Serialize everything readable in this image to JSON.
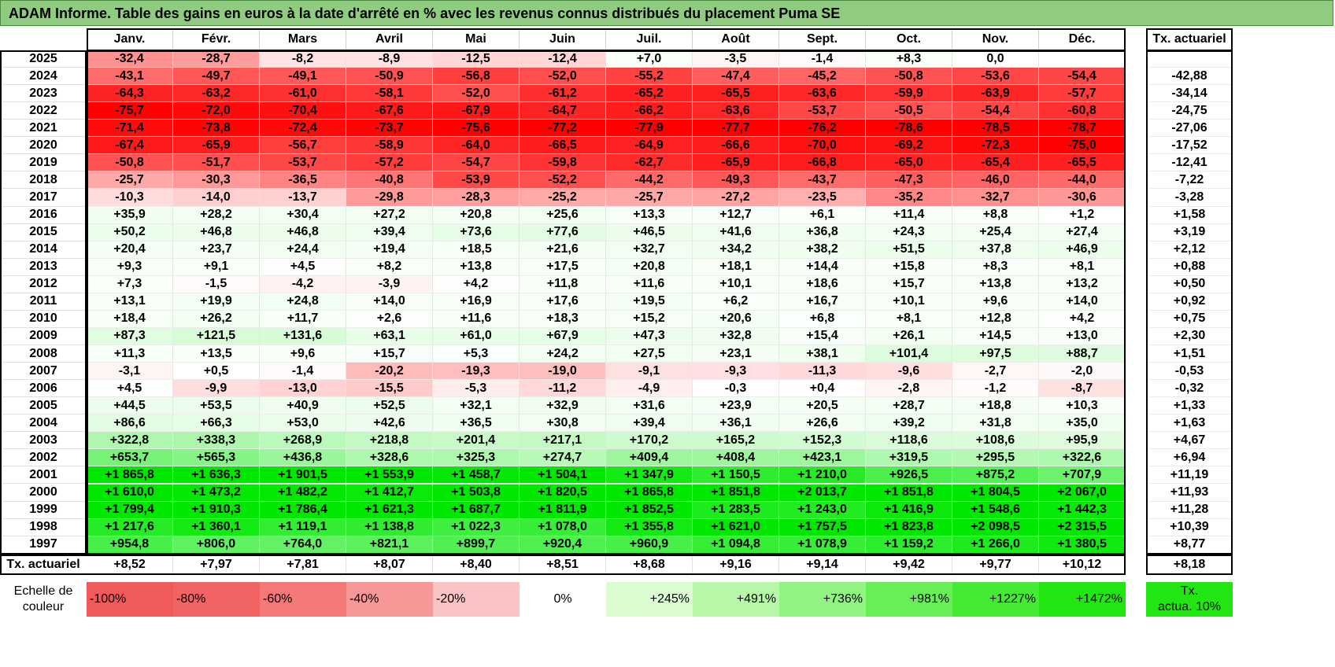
{
  "title": "ADAM Informe. Table des gains en euros à la date d'arrêté en % avec les revenus connus distribués du placement Puma SE",
  "months": [
    "Janv.",
    "Févr.",
    "Mars",
    "Avril",
    "Mai",
    "Juin",
    "Juil.",
    "Août",
    "Sept.",
    "Oct.",
    "Nov.",
    "Déc."
  ],
  "actuarial_header": "Tx. actuariel",
  "rows": [
    {
      "year": "2025",
      "values": [
        "-32,4",
        "-28,7",
        "-8,2",
        "-8,9",
        "-12,5",
        "-12,4",
        "+7,0",
        "-3,5",
        "-1,4",
        "+8,3",
        "0,0",
        ""
      ],
      "rate": ""
    },
    {
      "year": "2024",
      "values": [
        "-43,1",
        "-49,7",
        "-49,1",
        "-50,9",
        "-56,8",
        "-52,0",
        "-55,2",
        "-47,4",
        "-45,2",
        "-50,8",
        "-53,6",
        "-54,4"
      ],
      "rate": "-42,88"
    },
    {
      "year": "2023",
      "values": [
        "-64,3",
        "-63,2",
        "-61,0",
        "-58,1",
        "-52,0",
        "-61,2",
        "-65,2",
        "-65,5",
        "-63,6",
        "-59,9",
        "-63,9",
        "-57,7"
      ],
      "rate": "-34,14"
    },
    {
      "year": "2022",
      "values": [
        "-75,7",
        "-72,0",
        "-70,4",
        "-67,6",
        "-67,9",
        "-64,7",
        "-66,2",
        "-63,6",
        "-53,7",
        "-50,5",
        "-54,4",
        "-60,8"
      ],
      "rate": "-24,75"
    },
    {
      "year": "2021",
      "values": [
        "-71,4",
        "-73,8",
        "-72,4",
        "-73,7",
        "-75,6",
        "-77,2",
        "-77,9",
        "-77,7",
        "-76,2",
        "-78,6",
        "-78,5",
        "-78,7"
      ],
      "rate": "-27,06"
    },
    {
      "year": "2020",
      "values": [
        "-67,4",
        "-65,9",
        "-56,7",
        "-58,9",
        "-64,0",
        "-66,5",
        "-64,9",
        "-66,6",
        "-70,0",
        "-69,2",
        "-72,3",
        "-75,0"
      ],
      "rate": "-17,52"
    },
    {
      "year": "2019",
      "values": [
        "-50,8",
        "-51,7",
        "-53,7",
        "-57,2",
        "-54,7",
        "-59,8",
        "-62,7",
        "-65,9",
        "-66,8",
        "-65,0",
        "-65,4",
        "-65,5"
      ],
      "rate": "-12,41"
    },
    {
      "year": "2018",
      "values": [
        "-25,7",
        "-30,3",
        "-36,5",
        "-40,8",
        "-53,9",
        "-52,2",
        "-44,2",
        "-49,3",
        "-43,7",
        "-47,3",
        "-46,0",
        "-44,0"
      ],
      "rate": "-7,22"
    },
    {
      "year": "2017",
      "values": [
        "-10,3",
        "-14,0",
        "-13,7",
        "-29,8",
        "-28,3",
        "-25,2",
        "-25,7",
        "-27,2",
        "-23,5",
        "-35,2",
        "-32,7",
        "-30,6"
      ],
      "rate": "-3,28"
    },
    {
      "year": "2016",
      "values": [
        "+35,9",
        "+28,2",
        "+30,4",
        "+27,2",
        "+20,8",
        "+25,6",
        "+13,3",
        "+12,7",
        "+6,1",
        "+11,4",
        "+8,8",
        "+1,2"
      ],
      "rate": "+1,58"
    },
    {
      "year": "2015",
      "values": [
        "+50,2",
        "+46,8",
        "+46,8",
        "+39,4",
        "+73,6",
        "+77,6",
        "+46,5",
        "+41,6",
        "+36,8",
        "+24,3",
        "+25,4",
        "+27,4"
      ],
      "rate": "+3,19"
    },
    {
      "year": "2014",
      "values": [
        "+20,4",
        "+23,7",
        "+24,4",
        "+19,4",
        "+18,5",
        "+21,6",
        "+32,7",
        "+34,2",
        "+38,2",
        "+51,5",
        "+37,8",
        "+46,9"
      ],
      "rate": "+2,12"
    },
    {
      "year": "2013",
      "values": [
        "+9,3",
        "+9,1",
        "+4,5",
        "+8,2",
        "+13,8",
        "+17,5",
        "+20,8",
        "+18,1",
        "+14,4",
        "+15,8",
        "+8,3",
        "+8,1"
      ],
      "rate": "+0,88"
    },
    {
      "year": "2012",
      "values": [
        "+7,3",
        "-1,5",
        "-4,2",
        "-3,9",
        "+4,2",
        "+11,8",
        "+11,6",
        "+10,1",
        "+18,6",
        "+15,7",
        "+13,8",
        "+13,2"
      ],
      "rate": "+0,50"
    },
    {
      "year": "2011",
      "values": [
        "+13,1",
        "+19,9",
        "+24,8",
        "+14,0",
        "+16,9",
        "+17,6",
        "+19,5",
        "+6,2",
        "+16,7",
        "+10,1",
        "+9,6",
        "+14,0"
      ],
      "rate": "+0,92"
    },
    {
      "year": "2010",
      "values": [
        "+18,4",
        "+26,2",
        "+11,7",
        "+2,6",
        "+11,6",
        "+18,3",
        "+15,2",
        "+20,6",
        "+6,8",
        "+8,1",
        "+12,8",
        "+4,2"
      ],
      "rate": "+0,75"
    },
    {
      "year": "2009",
      "values": [
        "+87,3",
        "+121,5",
        "+131,6",
        "+63,1",
        "+61,0",
        "+67,9",
        "+47,3",
        "+32,8",
        "+15,4",
        "+26,1",
        "+14,5",
        "+13,0"
      ],
      "rate": "+2,30"
    },
    {
      "year": "2008",
      "values": [
        "+11,3",
        "+13,5",
        "+9,6",
        "+15,7",
        "+5,3",
        "+24,2",
        "+27,5",
        "+23,1",
        "+38,1",
        "+101,4",
        "+97,5",
        "+88,7"
      ],
      "rate": "+1,51"
    },
    {
      "year": "2007",
      "values": [
        "-3,1",
        "+0,5",
        "-1,4",
        "-20,2",
        "-19,3",
        "-19,0",
        "-9,1",
        "-9,3",
        "-11,3",
        "-9,6",
        "-2,7",
        "-2,0"
      ],
      "rate": "-0,53"
    },
    {
      "year": "2006",
      "values": [
        "+4,5",
        "-9,9",
        "-13,0",
        "-15,5",
        "-5,3",
        "-11,2",
        "-4,9",
        "-0,3",
        "+0,4",
        "-2,8",
        "-1,2",
        "-8,7"
      ],
      "rate": "-0,32"
    },
    {
      "year": "2005",
      "values": [
        "+44,5",
        "+53,5",
        "+40,9",
        "+52,5",
        "+32,1",
        "+32,9",
        "+31,6",
        "+23,9",
        "+20,5",
        "+28,7",
        "+18,8",
        "+10,3"
      ],
      "rate": "+1,33"
    },
    {
      "year": "2004",
      "values": [
        "+86,6",
        "+66,3",
        "+53,0",
        "+42,6",
        "+36,5",
        "+30,8",
        "+39,4",
        "+36,1",
        "+26,6",
        "+39,2",
        "+31,8",
        "+35,0"
      ],
      "rate": "+1,63"
    },
    {
      "year": "2003",
      "values": [
        "+322,8",
        "+338,3",
        "+268,9",
        "+218,8",
        "+201,4",
        "+217,1",
        "+170,2",
        "+165,2",
        "+152,3",
        "+118,6",
        "+108,6",
        "+95,9"
      ],
      "rate": "+4,67"
    },
    {
      "year": "2002",
      "values": [
        "+653,7",
        "+565,3",
        "+436,8",
        "+328,6",
        "+325,3",
        "+274,7",
        "+409,4",
        "+408,4",
        "+423,1",
        "+319,5",
        "+295,5",
        "+322,6"
      ],
      "rate": "+6,94"
    },
    {
      "year": "2001",
      "values": [
        "+1 865,8",
        "+1 636,3",
        "+1 901,5",
        "+1 553,9",
        "+1 458,7",
        "+1 504,1",
        "+1 347,9",
        "+1 150,5",
        "+1 210,0",
        "+926,5",
        "+875,2",
        "+707,9"
      ],
      "rate": "+11,19"
    },
    {
      "year": "2000",
      "values": [
        "+1 610,0",
        "+1 473,2",
        "+1 482,2",
        "+1 412,7",
        "+1 503,8",
        "+1 820,5",
        "+1 865,8",
        "+1 851,8",
        "+2 013,7",
        "+1 851,8",
        "+1 804,5",
        "+2 067,0"
      ],
      "rate": "+11,93"
    },
    {
      "year": "1999",
      "values": [
        "+1 799,4",
        "+1 910,3",
        "+1 786,4",
        "+1 621,3",
        "+1 687,7",
        "+1 811,9",
        "+1 852,5",
        "+1 283,5",
        "+1 243,0",
        "+1 416,9",
        "+1 548,6",
        "+1 442,3"
      ],
      "rate": "+11,28"
    },
    {
      "year": "1998",
      "values": [
        "+1 217,6",
        "+1 360,1",
        "+1 119,1",
        "+1 138,8",
        "+1 022,3",
        "+1 078,0",
        "+1 355,8",
        "+1 621,0",
        "+1 757,5",
        "+1 823,8",
        "+2 098,5",
        "+2 315,5"
      ],
      "rate": "+10,39"
    },
    {
      "year": "1997",
      "values": [
        "+954,8",
        "+806,0",
        "+764,0",
        "+821,1",
        "+899,7",
        "+920,4",
        "+960,9",
        "+1 094,8",
        "+1 078,9",
        "+1 159,2",
        "+1 266,0",
        "+1 380,5"
      ],
      "rate": "+8,77"
    }
  ],
  "summary": {
    "label": "Tx. actuariel",
    "values": [
      "+8,52",
      "+7,97",
      "+7,81",
      "+8,07",
      "+8,40",
      "+8,51",
      "+8,68",
      "+9,16",
      "+9,14",
      "+9,42",
      "+9,77",
      "+10,12"
    ],
    "rate": "+8,18"
  },
  "legend": {
    "label_line1": "Echelle de",
    "label_line2": "couleur",
    "items": [
      {
        "text": "-100%",
        "color": "#f05a5a",
        "align": "left"
      },
      {
        "text": "-80%",
        "color": "#f26464",
        "align": "left"
      },
      {
        "text": "-60%",
        "color": "#f47878",
        "align": "left"
      },
      {
        "text": "-40%",
        "color": "#f79898",
        "align": "left"
      },
      {
        "text": "-20%",
        "color": "#fbc4c4",
        "align": "left"
      },
      {
        "text": "0%",
        "color": "#ffffff",
        "align": "center"
      },
      {
        "text": "+245%",
        "color": "#dcfcd2",
        "align": "right"
      },
      {
        "text": "+491%",
        "color": "#b6f8a8",
        "align": "right"
      },
      {
        "text": "+736%",
        "color": "#90f480",
        "align": "right"
      },
      {
        "text": "+981%",
        "color": "#68ef58",
        "align": "right"
      },
      {
        "text": "+1227%",
        "color": "#44ea34",
        "align": "right"
      },
      {
        "text": "+1472%",
        "color": "#22e612",
        "align": "right"
      }
    ],
    "rate_line1": "Tx.",
    "rate_line2": "actua. 10%",
    "rate_color": "#22e612"
  }
}
